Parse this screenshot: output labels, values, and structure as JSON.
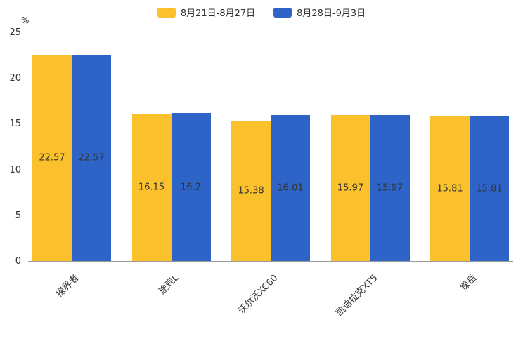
{
  "chart_data": {
    "type": "bar",
    "categories": [
      "探界者",
      "途观L",
      "沃尔沃XC60",
      "凯迪拉克XT5",
      "探岳"
    ],
    "series": [
      {
        "name": "8月21日-8月27日",
        "color": "#FBC12D",
        "values": [
          22.57,
          16.15,
          15.38,
          15.97,
          15.81
        ]
      },
      {
        "name": "8月28日-9月3日",
        "color": "#2E64C7",
        "values": [
          22.57,
          16.2,
          16.01,
          15.97,
          15.81
        ]
      }
    ],
    "ylabel": "%",
    "ylim": [
      0,
      25
    ],
    "yticks": [
      0,
      5,
      10,
      15,
      20,
      25
    ],
    "legend_position": "top",
    "grid": "off",
    "value_labels": "inside-center"
  }
}
